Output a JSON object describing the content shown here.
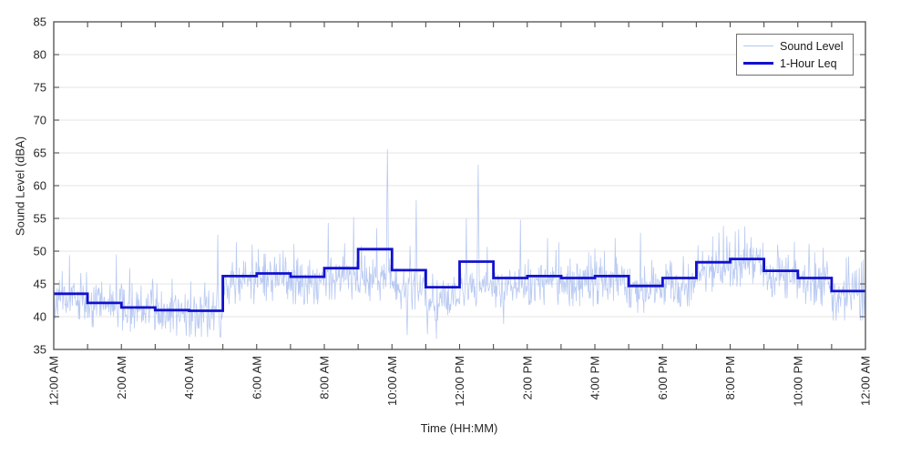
{
  "colors": {
    "sound_level_line": "#b5c7f1",
    "leq_line": "#1111cf",
    "axis": "#4f4f4f",
    "grid": "#e4e4e4",
    "tick_text": "#262626",
    "background": "#ffffff",
    "legend_border": "#6e6e6e"
  },
  "chart_data": {
    "type": "line",
    "title": "",
    "xlabel": "Time (HH:MM)",
    "ylabel": "Sound Level (dBA)",
    "ylim": [
      35,
      85
    ],
    "xlim_hours": [
      0,
      24
    ],
    "grid": "horizontal-only",
    "ytick_values": [
      35,
      40,
      45,
      50,
      55,
      60,
      65,
      70,
      75,
      80,
      85
    ],
    "ytick_labels": [
      "35",
      "40",
      "45",
      "50",
      "55",
      "60",
      "65",
      "70",
      "75",
      "80",
      "85"
    ],
    "xtick_hours": [
      0,
      2,
      4,
      6,
      8,
      10,
      12,
      14,
      16,
      18,
      20,
      22,
      24
    ],
    "xtick_labels": [
      "12:00 AM",
      "2:00 AM",
      "4:00 AM",
      "6:00 AM",
      "8:00 AM",
      "10:00 AM",
      "12:00 PM",
      "2:00 PM",
      "4:00 PM",
      "6:00 PM",
      "8:00 PM",
      "10:00 PM",
      "12:00 AM"
    ],
    "minor_xtick_every_hours": 1,
    "legend": {
      "position": "top-right",
      "entries": [
        "Sound Level",
        "1-Hour Leq"
      ]
    },
    "series": [
      {
        "name": "Sound Level",
        "style": "noisy-line",
        "color": "#b5c7f1",
        "sample_interval_minutes": 1,
        "note": "approximate reconstruction of 1-min noisy trace",
        "hourly_median": [
          43.0,
          41.8,
          41.0,
          40.5,
          40.3,
          45.3,
          45.8,
          45.3,
          46.0,
          45.8,
          44.5,
          42.8,
          44.8,
          44.8,
          45.2,
          45.0,
          45.3,
          44.0,
          45.0,
          47.2,
          48.0,
          46.2,
          45.0,
          42.8
        ],
        "noise_std": 1.65,
        "seed": 11,
        "peaks_hour_value": [
          [
            1.85,
            49.5
          ],
          [
            4.85,
            52.5
          ],
          [
            6.05,
            50.3
          ],
          [
            8.12,
            54.3
          ],
          [
            8.87,
            55.2
          ],
          [
            9.55,
            53.5
          ],
          [
            9.86,
            65.6
          ],
          [
            10.72,
            57.8
          ],
          [
            12.2,
            55.0
          ],
          [
            12.55,
            63.2
          ],
          [
            13.8,
            54.8
          ],
          [
            14.6,
            52.0
          ],
          [
            16.6,
            52.0
          ],
          [
            17.35,
            52.8
          ],
          [
            19.9,
            52.3
          ],
          [
            20.15,
            53.0
          ],
          [
            21.4,
            51.0
          ],
          [
            22.75,
            50.5
          ]
        ],
        "dips_hour_value": [
          [
            3.3,
            38.2
          ],
          [
            4.2,
            38.3
          ],
          [
            10.45,
            37.2
          ],
          [
            11.05,
            37.3
          ],
          [
            11.32,
            36.6
          ],
          [
            13.3,
            38.9
          ],
          [
            23.85,
            39.4
          ]
        ]
      },
      {
        "name": "1-Hour Leq",
        "style": "step",
        "color": "#1111cf",
        "hours": [
          0,
          1,
          2,
          3,
          4,
          5,
          6,
          7,
          8,
          9,
          10,
          11,
          12,
          13,
          14,
          15,
          16,
          17,
          18,
          19,
          20,
          21,
          22,
          23
        ],
        "hourly_values": [
          43.5,
          42.1,
          41.4,
          41.0,
          40.9,
          46.2,
          46.6,
          46.1,
          47.4,
          50.3,
          47.1,
          44.5,
          48.4,
          45.9,
          46.2,
          45.9,
          46.2,
          44.7,
          45.9,
          48.3,
          48.8,
          47.0,
          45.9,
          43.9
        ]
      }
    ]
  }
}
